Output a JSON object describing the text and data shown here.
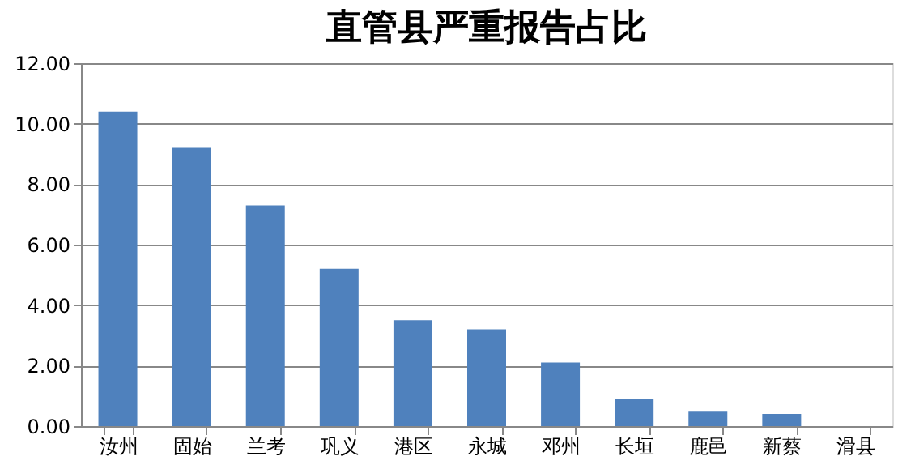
{
  "chart_data": {
    "type": "bar",
    "title": "直管县严重报告占比",
    "categories": [
      "汝州",
      "固始",
      "兰考",
      "巩义",
      "港区",
      "永城",
      "邓州",
      "长垣",
      "鹿邑",
      "新蔡",
      "滑县"
    ],
    "values": [
      10.4,
      9.2,
      7.3,
      5.2,
      3.5,
      3.2,
      2.1,
      0.9,
      0.5,
      0.4,
      0
    ],
    "color": "#4f81bd",
    "ylim": [
      0,
      12
    ],
    "yticks": [
      {
        "value": 0,
        "label": "0.00"
      },
      {
        "value": 2,
        "label": "2.00"
      },
      {
        "value": 4,
        "label": "4.00"
      },
      {
        "value": 6,
        "label": "6.00"
      },
      {
        "value": 8,
        "label": "8.00"
      },
      {
        "value": 10,
        "label": "10.00"
      },
      {
        "value": 12,
        "label": "12.00"
      }
    ],
    "grid": "y"
  }
}
